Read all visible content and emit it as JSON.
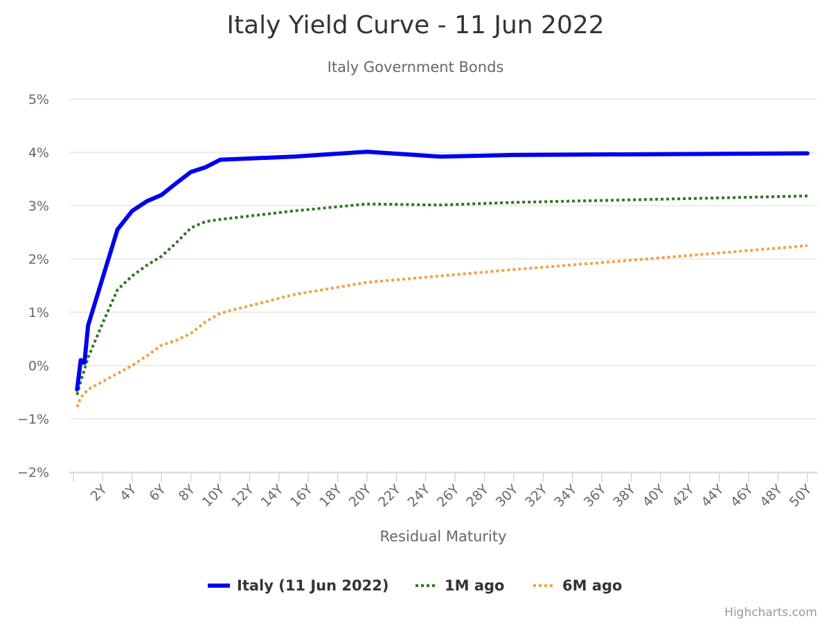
{
  "chart_data": {
    "type": "line",
    "title": "Italy Yield Curve - 11 Jun 2022",
    "subtitle": "Italy Government Bonds",
    "xlabel": "Residual Maturity",
    "ylabel": "",
    "xlim": [
      0,
      50
    ],
    "ylim": [
      -2,
      5
    ],
    "y_ticks": [
      -2,
      -1,
      0,
      1,
      2,
      3,
      4,
      5
    ],
    "y_tick_labels": [
      "−2%",
      "−1%",
      "0%",
      "1%",
      "2%",
      "3%",
      "4%",
      "5%"
    ],
    "x_ticks": [
      2,
      4,
      6,
      8,
      10,
      12,
      14,
      16,
      18,
      20,
      22,
      24,
      26,
      28,
      30,
      32,
      34,
      36,
      38,
      40,
      42,
      44,
      46,
      48,
      50
    ],
    "x_tick_labels": [
      "2Y",
      "4Y",
      "6Y",
      "8Y",
      "10Y",
      "12Y",
      "14Y",
      "16Y",
      "18Y",
      "20Y",
      "22Y",
      "24Y",
      "26Y",
      "28Y",
      "30Y",
      "32Y",
      "34Y",
      "36Y",
      "38Y",
      "40Y",
      "42Y",
      "44Y",
      "46Y",
      "48Y",
      "50Y"
    ],
    "grid": true,
    "legend_position": "bottom-center",
    "series": [
      {
        "name": "Italy (11 Jun 2022)",
        "color": "#0000ee",
        "style": "solid",
        "points": [
          [
            0.25,
            -0.45
          ],
          [
            0.5,
            0.1
          ],
          [
            0.75,
            0.05
          ],
          [
            1,
            0.75
          ],
          [
            2,
            1.65
          ],
          [
            3,
            2.55
          ],
          [
            4,
            2.9
          ],
          [
            5,
            3.08
          ],
          [
            6,
            3.2
          ],
          [
            7,
            3.42
          ],
          [
            8,
            3.63
          ],
          [
            9,
            3.72
          ],
          [
            10,
            3.86
          ],
          [
            15,
            3.92
          ],
          [
            20,
            4.01
          ],
          [
            25,
            3.92
          ],
          [
            30,
            3.95
          ],
          [
            50,
            3.98
          ]
        ]
      },
      {
        "name": "1M ago",
        "color": "#2a7a1a",
        "style": "dotted",
        "points": [
          [
            0.25,
            -0.55
          ],
          [
            0.5,
            -0.3
          ],
          [
            1,
            0.15
          ],
          [
            2,
            0.8
          ],
          [
            3,
            1.42
          ],
          [
            4,
            1.68
          ],
          [
            5,
            1.88
          ],
          [
            6,
            2.05
          ],
          [
            7,
            2.3
          ],
          [
            8,
            2.58
          ],
          [
            9,
            2.7
          ],
          [
            10,
            2.74
          ],
          [
            15,
            2.9
          ],
          [
            20,
            3.03
          ],
          [
            25,
            3.01
          ],
          [
            30,
            3.06
          ],
          [
            50,
            3.18
          ]
        ]
      },
      {
        "name": "6M ago",
        "color": "#f5a040",
        "style": "dotted",
        "points": [
          [
            0.25,
            -0.78
          ],
          [
            0.5,
            -0.6
          ],
          [
            1,
            -0.45
          ],
          [
            2,
            -0.3
          ],
          [
            3,
            -0.15
          ],
          [
            4,
            0.0
          ],
          [
            5,
            0.18
          ],
          [
            6,
            0.38
          ],
          [
            7,
            0.47
          ],
          [
            8,
            0.6
          ],
          [
            9,
            0.82
          ],
          [
            10,
            0.98
          ],
          [
            15,
            1.33
          ],
          [
            20,
            1.56
          ],
          [
            25,
            1.68
          ],
          [
            30,
            1.8
          ],
          [
            40,
            2.02
          ],
          [
            50,
            2.25
          ]
        ]
      }
    ],
    "credits": "Highcharts.com"
  }
}
